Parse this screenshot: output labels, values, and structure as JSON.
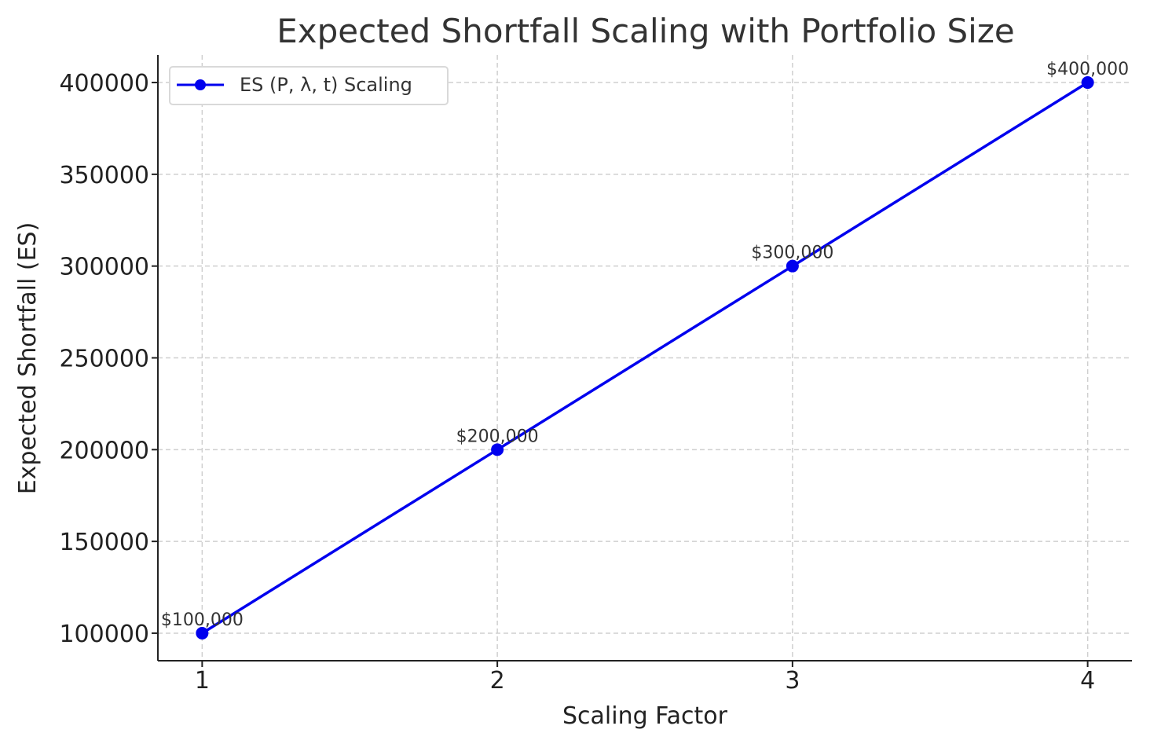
{
  "chart_data": {
    "type": "line",
    "title": "Expected Shortfall Scaling with Portfolio Size",
    "xlabel": "Scaling Factor",
    "ylabel": "Expected Shortfall (ES)",
    "x": [
      1,
      2,
      3,
      4
    ],
    "x_ticks": [
      "1",
      "2",
      "3",
      "4"
    ],
    "y_ticks": [
      "100000",
      "150000",
      "200000",
      "250000",
      "300000",
      "350000",
      "400000"
    ],
    "series": [
      {
        "name": "ES (P, λ, t) Scaling",
        "values": [
          100000,
          200000,
          300000,
          400000
        ],
        "labels": [
          "$100,000",
          "$200,000",
          "$300,000",
          "$400,000"
        ],
        "color": "#0000ee",
        "marker": "circle"
      }
    ],
    "xlim": [
      0.85,
      4.15
    ],
    "ylim": [
      85000,
      415000
    ],
    "grid": true,
    "legend": "top-left"
  }
}
